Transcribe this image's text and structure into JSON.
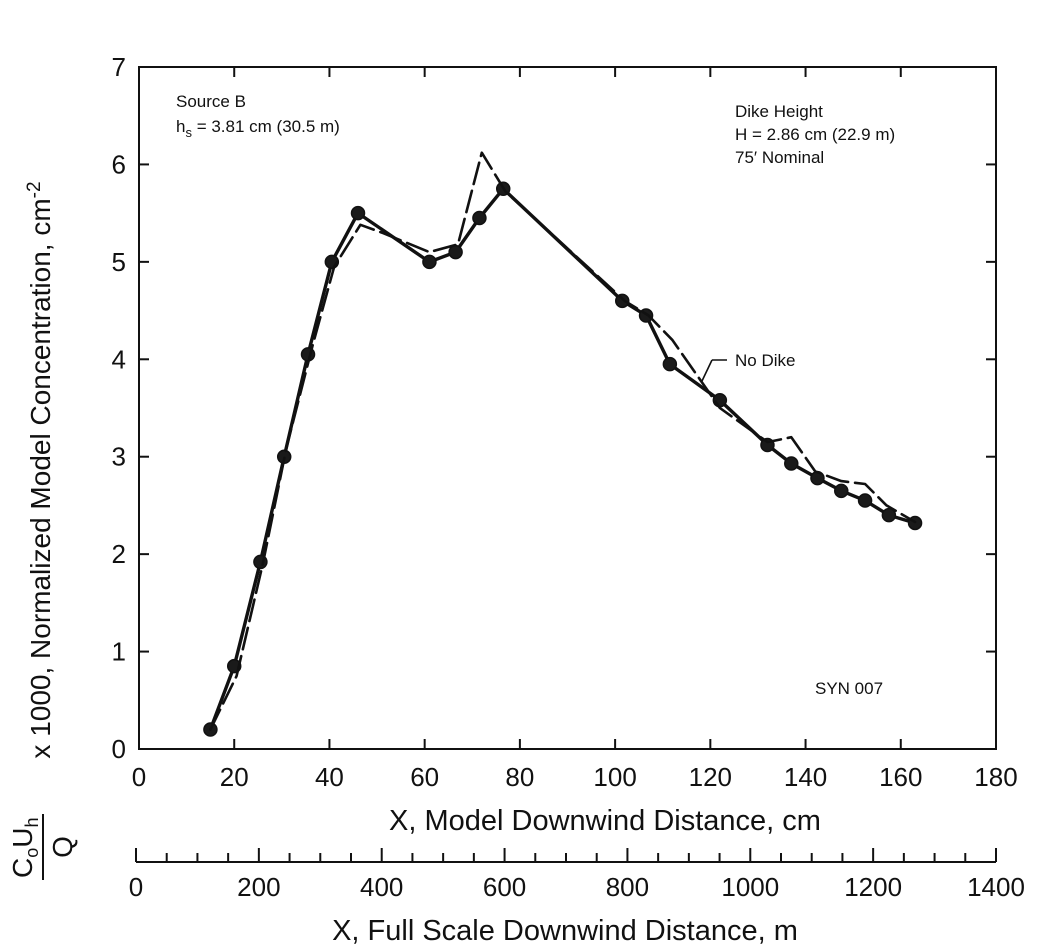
{
  "chart_data": {
    "type": "line",
    "code": "SYN 007",
    "ylabel": {
      "fraction_num_main": "C",
      "fraction_num_sub1": "o",
      "fraction_num_main2": "U",
      "fraction_num_sub2": "h",
      "fraction_den": "Q",
      "text": "x 1000, Normalized Model Concentration, cm",
      "superscript": "-2"
    },
    "xlabel": "X, Model Downwind Distance, cm",
    "x2label": "X, Full Scale Downwind Distance, m",
    "xlim": [
      0,
      180
    ],
    "ylim": [
      0,
      7
    ],
    "x2lim": [
      0,
      1400
    ],
    "xticks": [
      0,
      20,
      40,
      60,
      80,
      100,
      120,
      140,
      160,
      180
    ],
    "yticks": [
      0,
      1,
      2,
      3,
      4,
      5,
      6,
      7
    ],
    "x2ticks": [
      0,
      200,
      400,
      600,
      800,
      1000,
      1200,
      1400
    ],
    "x2_minor_step": 50,
    "annotations": {
      "source_line1": "Source B",
      "source_line2_main": "h",
      "source_line2_sub": "s",
      "source_line2_rest": " = 3.81 cm (30.5 m)",
      "dike_line1": "Dike Height",
      "dike_line2": "H = 2.86 cm (22.9 m)",
      "dike_line3": "75′ Nominal",
      "no_dike_label": "No Dike"
    },
    "series": [
      {
        "name": "Dike Height",
        "style": "solid-markers",
        "x": [
          15,
          20,
          25.5,
          30.5,
          35.5,
          40.5,
          46,
          61,
          66.5,
          71.5,
          76.5,
          101.5,
          106.5,
          111.5,
          122,
          132,
          137,
          142.5,
          147.5,
          152.5,
          157.5,
          163
        ],
        "y": [
          0.2,
          0.85,
          1.92,
          3.0,
          4.05,
          5.0,
          5.5,
          5.0,
          5.1,
          5.45,
          5.75,
          4.6,
          4.45,
          3.95,
          3.58,
          3.12,
          2.93,
          2.78,
          2.65,
          2.55,
          2.4,
          2.32
        ]
      },
      {
        "name": "No Dike",
        "style": "dashed",
        "x": [
          15,
          20.5,
          26,
          31,
          36.5,
          41,
          46.5,
          51,
          61,
          67,
          72,
          77,
          102,
          107,
          112,
          122,
          132,
          137,
          142,
          147.5,
          152.5,
          157,
          163
        ],
        "y": [
          0.2,
          0.75,
          1.9,
          3.1,
          4.15,
          4.95,
          5.38,
          5.3,
          5.1,
          5.18,
          6.12,
          5.72,
          4.6,
          4.45,
          4.2,
          3.5,
          3.15,
          3.2,
          2.85,
          2.75,
          2.72,
          2.5,
          2.33
        ]
      }
    ]
  }
}
